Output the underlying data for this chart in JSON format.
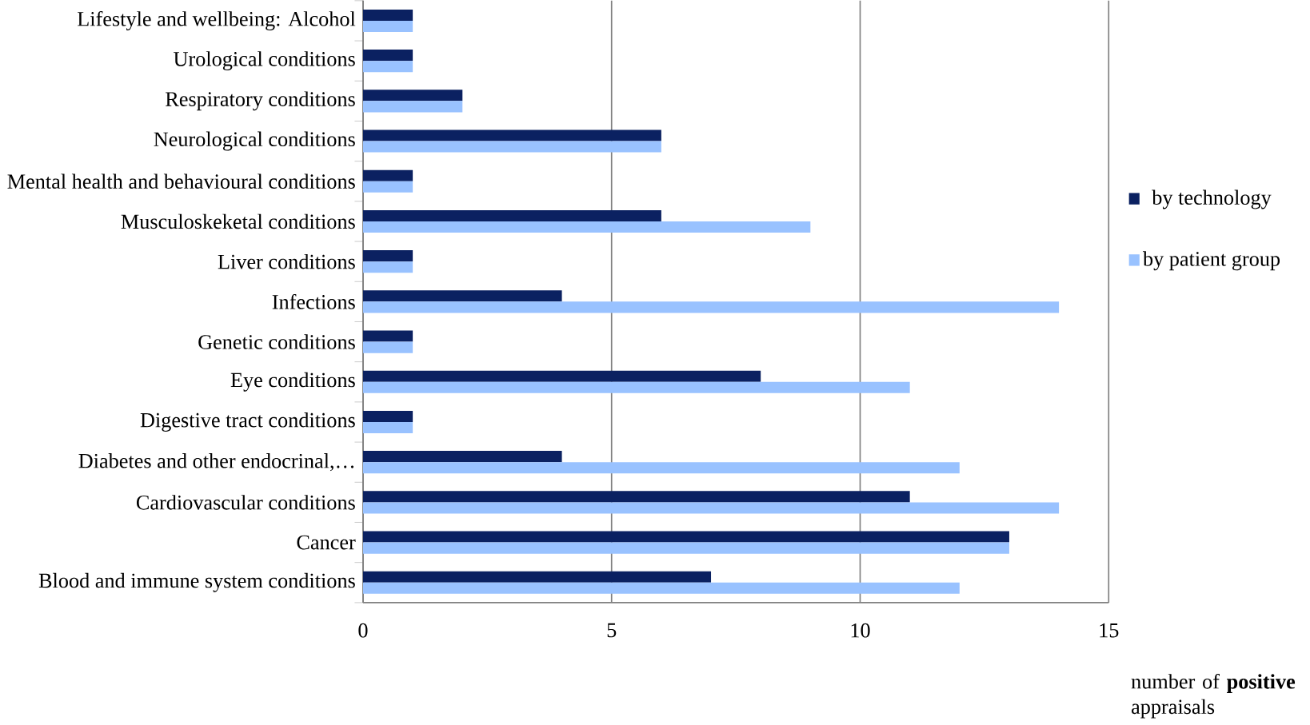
{
  "chart_data": {
    "type": "bar",
    "orientation": "horizontal",
    "xlabel": "number of **positive** appraisals",
    "categories": [
      "Lifestyle and wellbeing: Alcohol",
      "Urological conditions",
      "Respiratory conditions",
      "Neurological conditions",
      "Mental health and behavioural conditions",
      "Musculoskeketal conditions",
      "Liver conditions",
      "Infections",
      "Genetic conditions",
      "Eye conditions",
      "Digestive tract conditions",
      "Diabetes and other endocrinal,…",
      "Cardiovascular conditions",
      "Cancer",
      "Blood and immune system conditions"
    ],
    "series": [
      {
        "name": "by technology",
        "color": "#0b2161",
        "values": [
          1,
          1,
          2,
          6,
          1,
          6,
          1,
          4,
          1,
          8,
          1,
          4,
          11,
          13,
          7
        ]
      },
      {
        "name": "by patient group",
        "color": "#99c2ff",
        "values": [
          1,
          1,
          2,
          6,
          1,
          9,
          1,
          14,
          1,
          11,
          1,
          12,
          14,
          13,
          12
        ]
      }
    ],
    "xlim": [
      0,
      15
    ],
    "xticks": [
      0,
      5,
      10,
      15
    ],
    "grid": "x",
    "legend": "right"
  }
}
